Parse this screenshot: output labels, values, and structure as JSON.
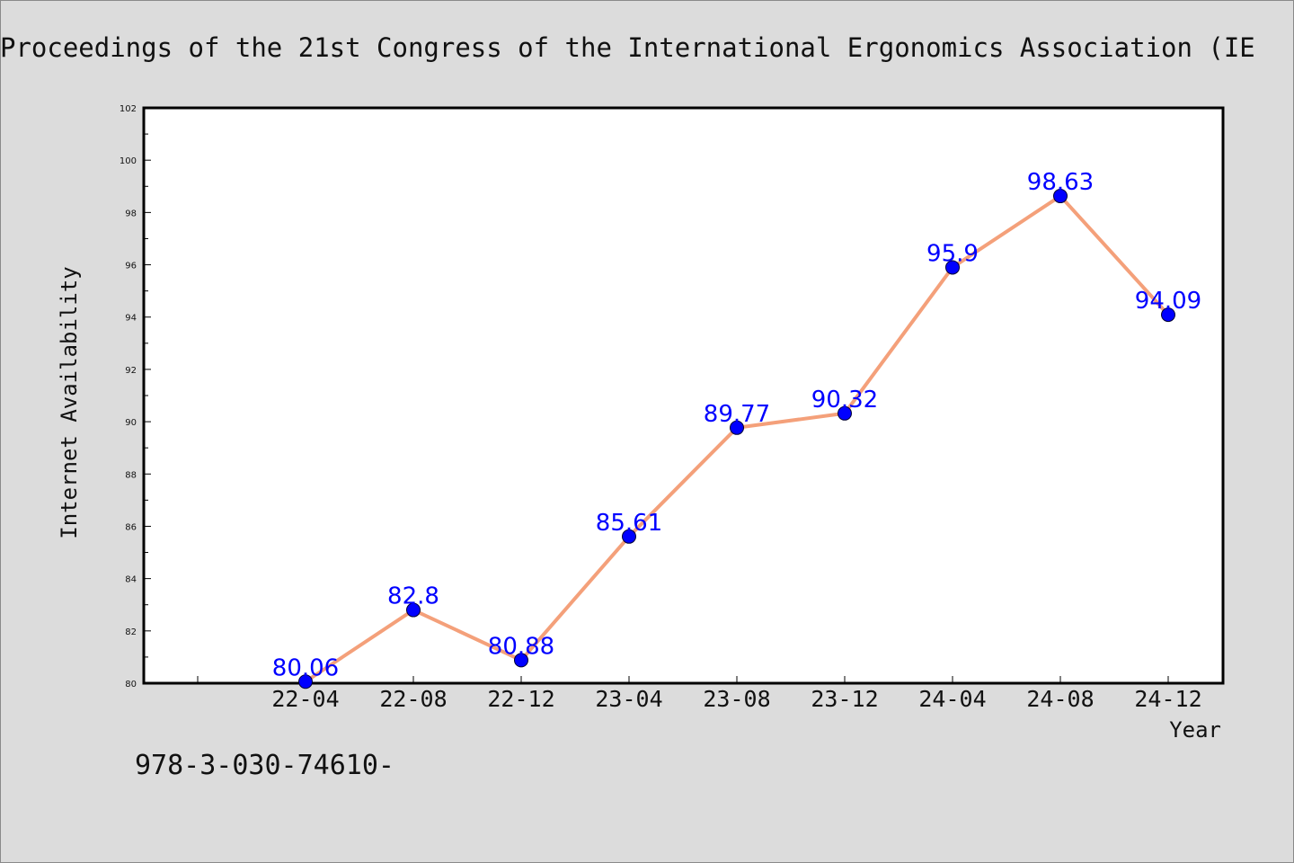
{
  "header": {
    "title": "Proceedings of the 21st Congress of the International Ergonomics Association (IE"
  },
  "footer": {
    "note": "978-3-030-74610-"
  },
  "chart_data": {
    "type": "line",
    "categories": [
      "22-04",
      "22-08",
      "22-12",
      "23-04",
      "23-08",
      "23-12",
      "24-04",
      "24-08",
      "24-12"
    ],
    "values": [
      80.06,
      82.8,
      80.88,
      85.61,
      89.77,
      90.32,
      95.9,
      98.63,
      94.09
    ],
    "data_labels": [
      "80.06",
      "82.8",
      "80.88",
      "85.61",
      "89.77",
      "90.32",
      "95.9",
      "98.63",
      "94.09"
    ],
    "xlabel": "Year",
    "ylabel": "Internet Availability",
    "ylim": [
      80,
      102
    ],
    "y_ticks": [
      80,
      82,
      84,
      86,
      88,
      90,
      92,
      94,
      96,
      98,
      100,
      102
    ],
    "grid": false,
    "legend": "none",
    "colors": {
      "line": "#f4a07a",
      "marker": "#0000ff",
      "label": "#0000ff",
      "plot_background": "#ffffff",
      "page_background": "#dcdcdc"
    }
  }
}
